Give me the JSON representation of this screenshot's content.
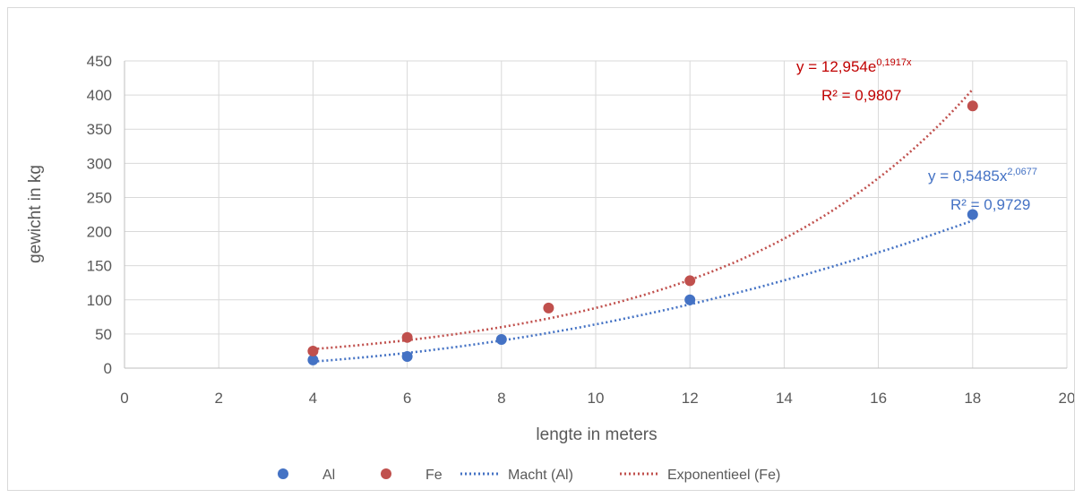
{
  "chart_data": {
    "type": "scatter",
    "xlabel": "lengte in meters",
    "ylabel": "gewicht in kg",
    "xlim": [
      0,
      20
    ],
    "ylim": [
      0,
      450
    ],
    "xticks": [
      0,
      2,
      4,
      6,
      8,
      10,
      12,
      14,
      16,
      18,
      20
    ],
    "yticks": [
      0,
      50,
      100,
      150,
      200,
      250,
      300,
      350,
      400,
      450
    ],
    "grid": true,
    "legend_position": "bottom",
    "series": [
      {
        "name": "Al",
        "color": "#4472c4",
        "x": [
          4,
          6,
          8,
          12,
          18
        ],
        "y": [
          12,
          17,
          42,
          100,
          225
        ]
      },
      {
        "name": "Fe",
        "color": "#c0504d",
        "x": [
          4,
          6,
          9,
          12,
          18
        ],
        "y": [
          25,
          45,
          88,
          128,
          384
        ]
      }
    ],
    "trendlines": [
      {
        "name": "Macht (Al)",
        "kind": "power",
        "color": "#4472c4",
        "a": 0.5485,
        "b": 2.0677,
        "x_range": [
          4,
          18
        ],
        "equation_base": "y = 0,5485x",
        "equation_exponent": "2,0677",
        "r2_label": "R² = 0,9729"
      },
      {
        "name": "Exponentieel (Fe)",
        "kind": "exponential",
        "color": "#c0504d",
        "a": 12.954,
        "b": 0.1917,
        "x_range": [
          4,
          18
        ],
        "equation_base": "y = 12,954e",
        "equation_exponent": "0,1917x",
        "r2_label": "R² = 0,9807"
      }
    ]
  }
}
